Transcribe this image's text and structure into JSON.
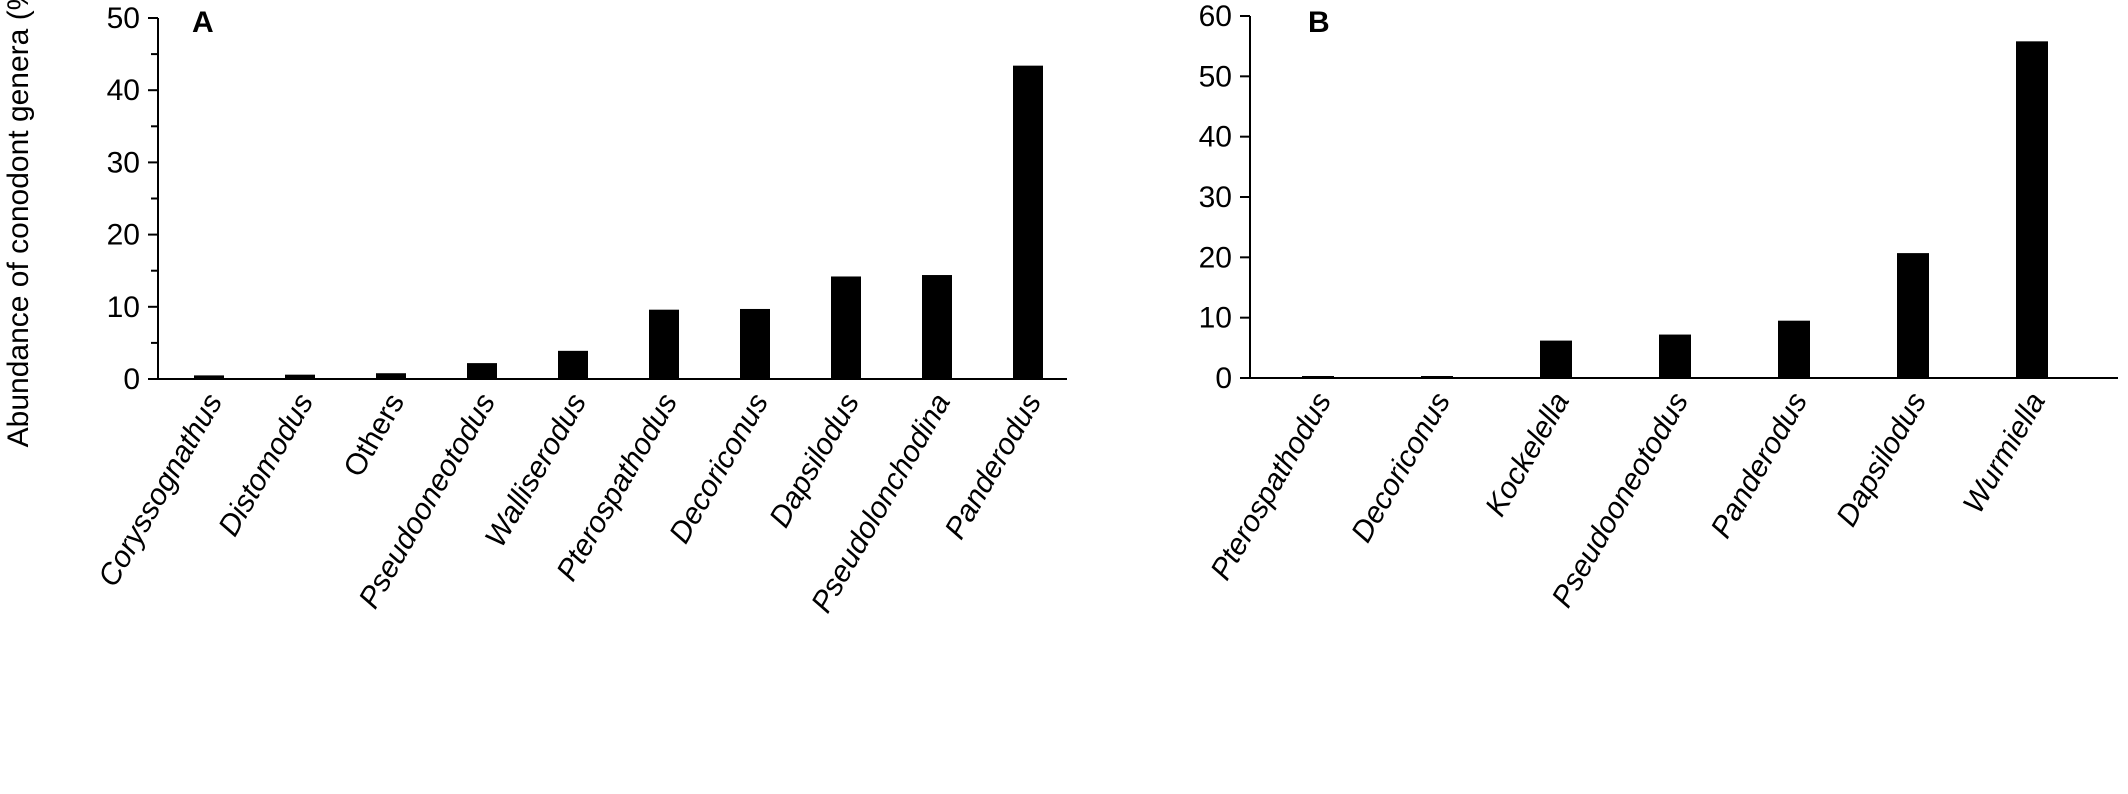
{
  "chart_data": [
    {
      "type": "bar",
      "panel_label": "A",
      "title": "",
      "xlabel": "",
      "ylabel": "Abundance of conodont genera (%)",
      "ylim": [
        0,
        50
      ],
      "yticks": [
        0,
        10,
        20,
        30,
        40,
        50
      ],
      "grid": false,
      "categories": [
        "Coryssognathus",
        "Distomodus",
        "Others",
        "Pseudooneotodus",
        "Walliserodus",
        "Pterospathodus",
        "Decoriconus",
        "Dapsilodus",
        "Pseudolonchodina",
        "Panderodus"
      ],
      "italic": [
        true,
        true,
        false,
        true,
        true,
        true,
        true,
        true,
        true,
        true
      ],
      "values": [
        0.5,
        0.6,
        0.8,
        2.2,
        3.9,
        9.6,
        9.7,
        14.2,
        14.4,
        43.4
      ],
      "bar_color": "#000000"
    },
    {
      "type": "bar",
      "panel_label": "B",
      "title": "",
      "xlabel": "",
      "ylabel": "",
      "ylim": [
        0,
        60
      ],
      "yticks": [
        0,
        10,
        20,
        30,
        40,
        50,
        60
      ],
      "grid": false,
      "categories": [
        "Pterospathodus",
        "Decoriconus",
        "Kockelella",
        "Pseudooneotodus",
        "Panderodus",
        "Dapsilodus",
        "Wurmiella"
      ],
      "italic": [
        true,
        true,
        true,
        true,
        true,
        true,
        true
      ],
      "values": [
        0.2,
        0.2,
        6.2,
        7.2,
        9.5,
        20.7,
        55.8
      ],
      "bar_color": "#000000"
    }
  ]
}
